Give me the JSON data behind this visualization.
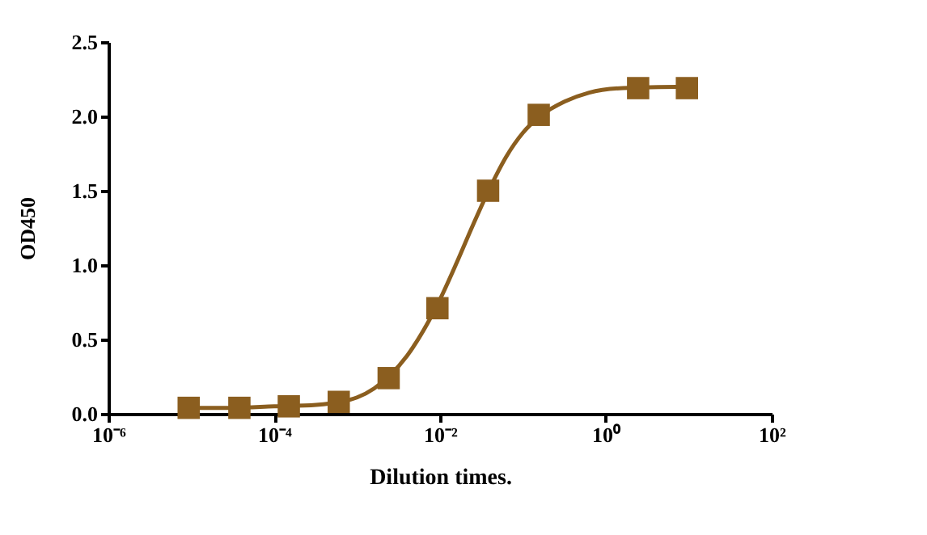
{
  "chart_data": {
    "type": "scatter",
    "xlabel": "Dilution times.",
    "ylabel": "OD450",
    "log": "x",
    "grid": false,
    "marker": "square",
    "xlim": [
      1e-06,
      100
    ],
    "xticks": [
      {
        "value": 1e-06,
        "label": "10⁻⁶"
      },
      {
        "value": 0.0001,
        "label": "10⁻⁴"
      },
      {
        "value": 0.01,
        "label": "10⁻²"
      },
      {
        "value": 1,
        "label": "10⁰"
      },
      {
        "value": 100,
        "label": "10²"
      }
    ],
    "ylim": [
      0,
      2.5
    ],
    "yticks": [
      {
        "value": 0,
        "label": "0.0"
      },
      {
        "value": 0.5,
        "label": "0.5"
      },
      {
        "value": 1,
        "label": "1.0"
      },
      {
        "value": 1.5,
        "label": "1.5"
      },
      {
        "value": 2,
        "label": "2.0"
      },
      {
        "value": 2.5,
        "label": "2.5"
      }
    ],
    "series": [
      {
        "type": "line",
        "color": "#8b5e1f",
        "line_style": "solid",
        "marker": "none",
        "x": [
          9.3e-06,
          3.2e-05,
          0.0001,
          0.00032,
          0.00063,
          0.001,
          0.0016,
          0.0025,
          0.004,
          0.0063,
          0.01,
          0.016,
          0.025,
          0.04,
          0.063,
          0.1,
          0.16,
          0.32,
          0.63,
          1.6,
          9.5
        ],
        "values": [
          0.04,
          0.04,
          0.05,
          0.06,
          0.08,
          0.11,
          0.17,
          0.26,
          0.39,
          0.56,
          0.77,
          1.02,
          1.27,
          1.52,
          1.73,
          1.89,
          2.0,
          2.1,
          2.16,
          2.19,
          2.2
        ]
      },
      {
        "color": "#8b5e1f",
        "x": [
          9.3e-06,
          3.8e-05,
          0.00015,
          0.0006,
          0.0024,
          0.0093,
          0.038,
          0.155,
          2.45,
          9.5
        ],
        "values": [
          0.04,
          0.04,
          0.05,
          0.08,
          0.24,
          0.71,
          1.5,
          2.01,
          2.19,
          2.19
        ]
      }
    ]
  }
}
